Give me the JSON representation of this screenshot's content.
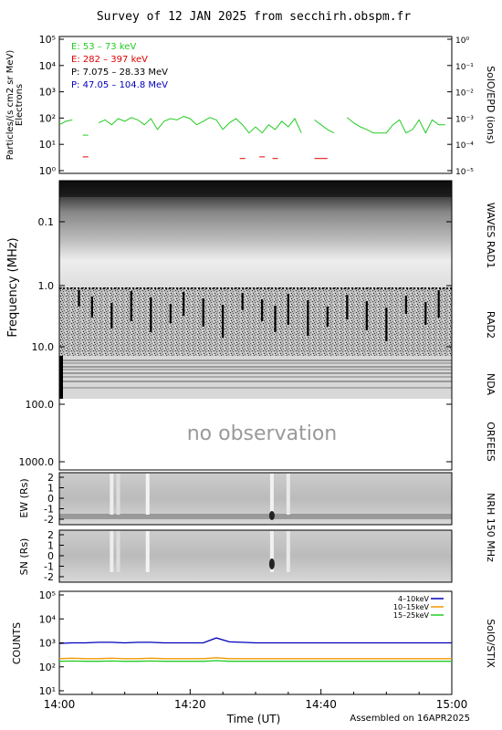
{
  "title": "Survey of 12 JAN 2025 from secchirh.obspm.fr",
  "footer": "Assembled on 16APR2025",
  "time_axis": {
    "label": "Time (UT)",
    "ticks": [
      "14:00",
      "14:20",
      "14:40",
      "15:00"
    ],
    "range_minutes": [
      0,
      60
    ]
  },
  "colors": {
    "green": "#22cc22",
    "red": "#dd0000",
    "black": "#000000",
    "blue": "#0000bb",
    "orange": "#ee9900"
  },
  "epd_panel": {
    "ylabel_line1": "Particles/(s cm2 sr MeV)",
    "ylabel_line2": "Electrons",
    "right_label": "SolO/EPD (ions)",
    "left_ticks": [
      "10⁵",
      "10⁴",
      "10³",
      "10²",
      "10¹",
      "10⁰"
    ],
    "right_ticks": [
      "10⁰",
      "10⁻¹",
      "10⁻²",
      "10⁻³",
      "10⁻⁴",
      "10⁻⁵"
    ],
    "legend": [
      {
        "text": "E: 53 – 73 keV",
        "color": "#22cc22"
      },
      {
        "text": "E: 282 – 397 keV",
        "color": "#dd0000"
      },
      {
        "text": "P: 7.075 – 28.33 MeV",
        "color": "#000000"
      },
      {
        "text": "P: 47.05 – 104.8 MeV",
        "color": "#0000bb"
      }
    ]
  },
  "waves_panel": {
    "ylabel": "Frequency (MHz)",
    "ticks": [
      "0.1",
      "1.0",
      "10.0",
      "100.0",
      "1000.0"
    ],
    "labels": [
      "WAVES RAD1",
      "RAD2",
      "NDA",
      "ORFEES"
    ],
    "no_obs_text": "no observation"
  },
  "nrh_panel": {
    "right_label": "NRH 150 MHz",
    "ew_label": "EW (Rs)",
    "sn_label": "SN (Rs)",
    "ticks": [
      "2",
      "1",
      "0",
      "-1",
      "-2"
    ]
  },
  "stix_panel": {
    "ylabel": "COUNTS",
    "right_label": "SolO/STIX",
    "ticks": [
      "10⁵",
      "10⁴",
      "10³",
      "10²",
      "10¹"
    ],
    "legend": [
      {
        "text": "4–10keV",
        "color": "#0000bb"
      },
      {
        "text": "10–15keV",
        "color": "#ee9900"
      },
      {
        "text": "15–25keV",
        "color": "#22cc22"
      }
    ]
  },
  "chart_data": [
    {
      "type": "line",
      "title": "SolO/EPD electrons",
      "ylabel": "Particles/(s cm2 sr MeV)",
      "yscale": "log",
      "ylim": [
        1,
        100000
      ],
      "x": [
        0,
        1,
        2,
        3,
        4,
        5,
        6,
        7,
        8,
        9,
        10,
        11,
        12,
        13,
        14,
        15,
        16,
        17,
        18,
        19,
        20,
        21,
        22,
        23,
        24,
        25,
        26,
        27,
        28,
        29,
        30,
        31,
        32,
        33,
        34,
        35,
        36,
        37,
        38,
        39,
        40,
        41,
        42,
        43,
        44,
        45,
        46,
        47,
        48,
        49,
        50,
        51,
        52,
        53,
        54,
        55,
        56,
        57,
        58,
        59
      ],
      "series": [
        {
          "name": "E: 53 – 73 keV",
          "values": [
            60,
            80,
            90,
            null,
            25,
            null,
            70,
            90,
            60,
            100,
            80,
            110,
            90,
            60,
            100,
            40,
            80,
            100,
            90,
            120,
            100,
            60,
            80,
            110,
            90,
            40,
            70,
            100,
            60,
            30,
            50,
            30,
            60,
            40,
            80,
            50,
            100,
            30,
            null,
            90,
            60,
            40,
            30,
            null,
            110,
            70,
            50,
            40,
            30,
            30,
            30,
            60,
            90,
            30,
            40,
            90,
            30,
            90,
            60,
            60
          ]
        },
        {
          "name": "E: 282 – 397 keV",
          "values": [
            null,
            null,
            null,
            null,
            4,
            null,
            null,
            null,
            null,
            null,
            null,
            null,
            null,
            null,
            null,
            null,
            null,
            null,
            null,
            null,
            null,
            null,
            null,
            null,
            null,
            null,
            null,
            null,
            3.5,
            null,
            null,
            4,
            null,
            3.5,
            null,
            null,
            null,
            null,
            null,
            3.5,
            3.5,
            3.5,
            null,
            null,
            null,
            null,
            null,
            null,
            null,
            null,
            null,
            null,
            null,
            null,
            null,
            null,
            null,
            null,
            null,
            null
          ]
        }
      ]
    },
    {
      "type": "line",
      "title": "SolO/STIX",
      "ylabel": "COUNTS",
      "yscale": "log",
      "ylim": [
        10,
        100000
      ],
      "x": [
        0,
        2,
        4,
        6,
        8,
        10,
        12,
        14,
        16,
        18,
        20,
        22,
        24,
        26,
        28,
        30,
        32,
        34,
        36,
        38,
        40,
        42,
        44,
        46,
        48,
        50,
        52,
        54,
        56,
        58,
        60
      ],
      "series": [
        {
          "name": "4–10keV",
          "values": [
            950,
            1000,
            1000,
            1050,
            1050,
            1000,
            1050,
            1050,
            1000,
            1000,
            1000,
            1000,
            1600,
            1100,
            1050,
            1000,
            1000,
            1000,
            1000,
            1000,
            1000,
            1000,
            1000,
            1000,
            1000,
            1000,
            1000,
            1000,
            1000,
            1000,
            1000
          ]
        },
        {
          "name": "10–15keV",
          "values": [
            220,
            230,
            220,
            220,
            230,
            220,
            220,
            230,
            220,
            220,
            220,
            220,
            240,
            220,
            220,
            220,
            220,
            220,
            220,
            220,
            220,
            220,
            220,
            220,
            220,
            220,
            220,
            220,
            220,
            220,
            220
          ]
        },
        {
          "name": "15–25keV",
          "values": [
            170,
            175,
            170,
            170,
            175,
            170,
            170,
            175,
            170,
            170,
            170,
            170,
            180,
            170,
            170,
            170,
            170,
            170,
            170,
            170,
            170,
            170,
            170,
            170,
            170,
            170,
            170,
            170,
            170,
            170,
            170
          ]
        }
      ]
    }
  ]
}
